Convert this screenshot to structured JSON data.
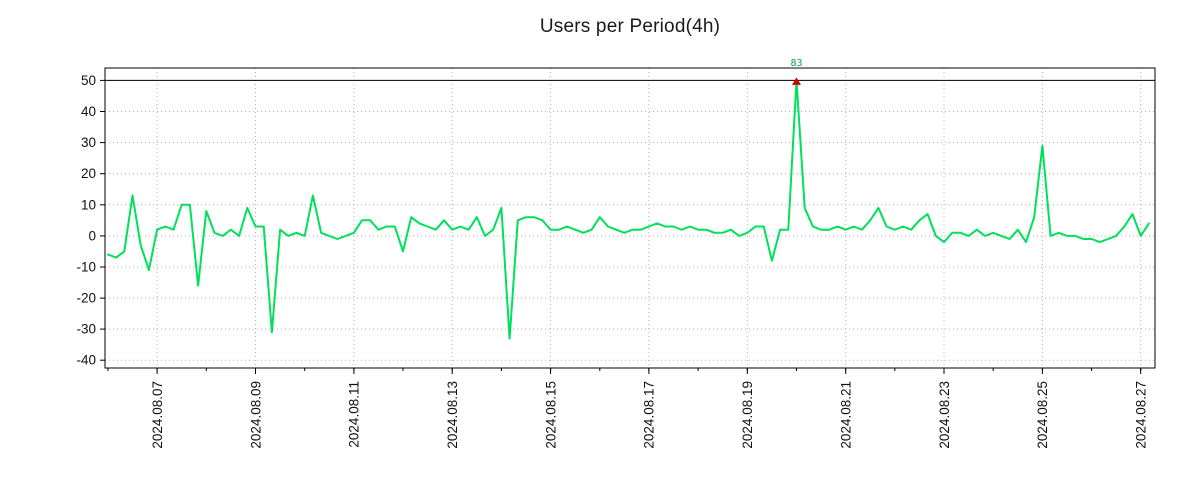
{
  "page": {
    "title": "Users per Period(4h)"
  },
  "chart_data": {
    "type": "line",
    "title": "Users per Period(4h)",
    "xlabel": "",
    "ylabel": "",
    "x_unit": "days since 2024-08-01 00:00, sampled every 4 hours",
    "x_start": 5.0,
    "x_step": 0.1666667,
    "values": [
      -6,
      -7,
      -5,
      13,
      -3,
      -11,
      2,
      3,
      2,
      10,
      10,
      -16,
      8,
      1,
      0,
      2,
      0,
      9,
      3,
      3,
      -31,
      2,
      0,
      1,
      0,
      13,
      1,
      0,
      -1,
      0,
      1,
      5,
      5,
      2,
      3,
      3,
      -5,
      6,
      4,
      3,
      2,
      5,
      2,
      3,
      2,
      6,
      0,
      2,
      9,
      -33,
      5,
      6,
      6,
      5,
      2,
      2,
      3,
      2,
      1,
      2,
      6,
      3,
      2,
      1,
      2,
      2,
      3,
      4,
      3,
      3,
      2,
      3,
      2,
      2,
      1,
      1,
      2,
      0,
      1,
      3,
      3,
      -8,
      2,
      2,
      83,
      9,
      3,
      2,
      2,
      3,
      2,
      3,
      2,
      5,
      9,
      3,
      2,
      3,
      2,
      5,
      7,
      0,
      -2,
      1,
      1,
      0,
      2,
      0,
      1,
      0,
      -1,
      2,
      -2,
      6,
      29,
      0,
      1,
      0,
      0,
      -1,
      -1,
      -2,
      -1,
      0,
      3,
      7,
      0,
      4
    ],
    "xlim": [
      4.94,
      26.29
    ],
    "ylim": [
      -42.5,
      54
    ],
    "clip_y": 50,
    "y_ticks": [
      -40,
      -30,
      -20,
      -10,
      0,
      10,
      20,
      30,
      40,
      50
    ],
    "x_ticks": [
      {
        "t": 6,
        "label": "2024.08.07"
      },
      {
        "t": 8,
        "label": "2024.08.09"
      },
      {
        "t": 10,
        "label": "2024.08.11"
      },
      {
        "t": 12,
        "label": "2024.08.13"
      },
      {
        "t": 14,
        "label": "2024.08.15"
      },
      {
        "t": 16,
        "label": "2024.08.17"
      },
      {
        "t": 18,
        "label": "2024.08.19"
      },
      {
        "t": 20,
        "label": "2024.08.21"
      },
      {
        "t": 22,
        "label": "2024.08.23"
      },
      {
        "t": 24,
        "label": "2024.08.25"
      },
      {
        "t": 26,
        "label": "2024.08.27"
      }
    ],
    "grid": "dotted",
    "legend": "none",
    "annotation": {
      "text": "83",
      "t": 19.0,
      "value": 83,
      "marker": "red-triangle-up",
      "clipped_at": 50
    },
    "colors": {
      "line": "#00e05a",
      "marker": "#cc0000",
      "annotation": "#00a844",
      "grid": "#b0b0b0",
      "axis": "#000000",
      "title": "#1a1a1a",
      "tick_text": "#111111"
    }
  }
}
